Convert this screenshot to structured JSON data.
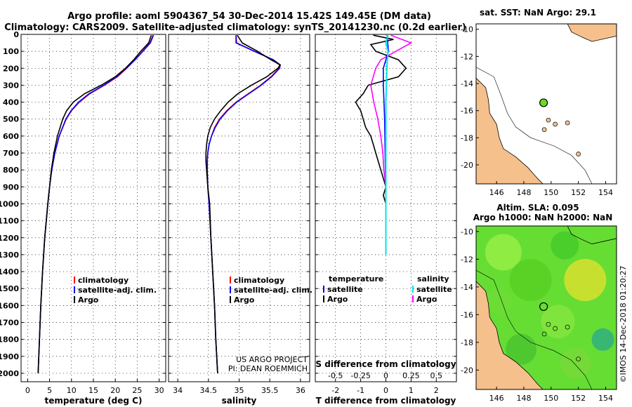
{
  "title_line1": "Argo profile: aoml 5904367_54 30-Dec-2014 15.42S 149.45E (DM data)",
  "title_line2": "Climatology: CARS2009. Satellite-adjusted climatology: synTS_20141230.nc (0.2d earlier)",
  "colors": {
    "climatology": "#ff0000",
    "satellite": "#0000ff",
    "argo": "#000000",
    "sal_satellite": "#00e5e5",
    "sal_argo": "#ff00ff",
    "land": "#f5c08c",
    "sea": "#ffffff"
  },
  "depth_axis": {
    "ylim": [
      0,
      2050
    ],
    "ticks": [
      "0",
      "100",
      "200",
      "300",
      "400",
      "500",
      "600",
      "700",
      "800",
      "900",
      "1000",
      "1100",
      "1200",
      "1300",
      "1400",
      "1500",
      "1600",
      "1700",
      "1800",
      "1900",
      "2000"
    ]
  },
  "chart_data": [
    {
      "type": "line",
      "id": "temperature",
      "xlabel": "temperature (deg C)",
      "xlim": [
        -1.5,
        31.5
      ],
      "xticks": [
        0,
        5,
        10,
        15,
        20,
        25,
        30
      ],
      "xtick_labels": [
        "0",
        "5",
        "10",
        "15",
        "20",
        "25",
        "30"
      ],
      "legend": [
        "climatology",
        "satellite-adj. clim.",
        "Argo"
      ],
      "depth": [
        5,
        50,
        100,
        150,
        200,
        250,
        300,
        350,
        400,
        450,
        500,
        600,
        700,
        800,
        900,
        1000,
        1200,
        1400,
        1600,
        1800,
        2000
      ],
      "series": [
        {
          "name": "climatology",
          "values": [
            28.6,
            27.9,
            26.2,
            24.5,
            22.6,
            20.5,
            17.5,
            14.2,
            11.8,
            10.0,
            8.8,
            7.2,
            6.2,
            5.5,
            5.0,
            4.6,
            3.9,
            3.4,
            3.0,
            2.7,
            2.4
          ]
        },
        {
          "name": "satellite-adj. clim.",
          "values": [
            28.7,
            28.0,
            26.3,
            24.5,
            22.5,
            20.3,
            17.4,
            14.0,
            11.6,
            9.9,
            8.7,
            7.2,
            6.2,
            5.5,
            5.0,
            4.6,
            3.9,
            3.4,
            3.0,
            2.7,
            2.4
          ]
        },
        {
          "name": "Argo",
          "values": [
            28.2,
            27.6,
            25.8,
            24.2,
            22.3,
            20.0,
            16.8,
            13.0,
            10.4,
            8.9,
            8.0,
            6.8,
            6.0,
            5.4,
            5.0,
            4.6,
            3.9,
            3.4,
            3.0,
            2.7,
            2.4
          ]
        }
      ]
    },
    {
      "type": "line",
      "id": "salinity",
      "xlabel": "salinity",
      "xlim": [
        33.85,
        36.15
      ],
      "xticks": [
        34,
        34.5,
        35,
        35.5,
        36
      ],
      "xtick_labels": [
        "34",
        "34.5",
        "35",
        "35.5",
        "36"
      ],
      "legend": [
        "climatology",
        "satellite-adj. clim.",
        "Argo"
      ],
      "annotation_line1": "US ARGO PROJECT",
      "annotation_line2": "PI: DEAN ROEMMICH",
      "depth": [
        5,
        50,
        100,
        150,
        180,
        200,
        250,
        300,
        350,
        400,
        450,
        500,
        550,
        600,
        650,
        700,
        750,
        800,
        900,
        1000,
        1200,
        1400,
        1600,
        1800,
        2000
      ],
      "series": [
        {
          "name": "climatology",
          "values": [
            34.95,
            34.96,
            35.25,
            35.55,
            35.66,
            35.65,
            35.52,
            35.35,
            35.15,
            34.95,
            34.8,
            34.68,
            34.6,
            34.55,
            34.51,
            34.49,
            34.48,
            34.48,
            34.49,
            34.51,
            34.54,
            34.57,
            34.6,
            34.62,
            34.65
          ]
        },
        {
          "name": "satellite-adj. clim.",
          "values": [
            34.95,
            34.95,
            35.25,
            35.56,
            35.67,
            35.66,
            35.53,
            35.36,
            35.16,
            34.96,
            34.81,
            34.69,
            34.61,
            34.55,
            34.51,
            34.49,
            34.48,
            34.48,
            34.49,
            34.51,
            34.54,
            34.57,
            34.6,
            34.62,
            34.65
          ]
        },
        {
          "name": "Argo",
          "values": [
            34.97,
            35.05,
            35.3,
            35.52,
            35.67,
            35.63,
            35.45,
            35.2,
            34.98,
            34.82,
            34.7,
            34.6,
            34.53,
            34.49,
            34.47,
            34.46,
            34.46,
            34.47,
            34.49,
            34.52,
            34.54,
            34.57,
            34.6,
            34.62,
            34.65
          ]
        }
      ]
    },
    {
      "type": "line",
      "id": "difference",
      "xlabel": "T difference from climatology",
      "xlabel_top": "S difference from climatology",
      "xlim": [
        -2.8,
        2.8
      ],
      "xticks": [
        -2,
        -1,
        0,
        1,
        2
      ],
      "xtick_labels": [
        "-2",
        "-1",
        "0",
        "1",
        "2"
      ],
      "s_xticks": [
        -0.5,
        -0.25,
        0,
        0.25,
        0.5
      ],
      "s_xtick_labels": [
        "-0.5",
        "-0.25",
        "0",
        "0.25",
        "0.5"
      ],
      "s_scale": 4,
      "legend_left_title": "temperature",
      "legend_right_title": "salinity",
      "legend_left": [
        "satellite",
        "Argo"
      ],
      "legend_right": [
        "satellite",
        "Argo"
      ],
      "t_satellite": {
        "depth": [
          5,
          100,
          200,
          300,
          500,
          1000,
          1300
        ],
        "values": [
          0.05,
          0.1,
          -0.1,
          -0.1,
          -0.05,
          0.0,
          0.0
        ]
      },
      "t_argo": {
        "depth": [
          5,
          30,
          60,
          100,
          150,
          200,
          250,
          300,
          350,
          400,
          450,
          500,
          550,
          600,
          650,
          700,
          750,
          800,
          850,
          900,
          950,
          1000
        ],
        "values": [
          -0.5,
          0.3,
          -0.6,
          -0.4,
          0.5,
          0.8,
          0.5,
          -0.7,
          -0.9,
          -1.2,
          -1.0,
          -0.9,
          -0.8,
          -0.6,
          -0.5,
          -0.4,
          -0.3,
          -0.2,
          -0.1,
          0.0,
          -0.1,
          0.0
        ]
      },
      "s_satellite": {
        "depth": [
          5,
          50,
          100,
          200,
          400,
          1300
        ],
        "values": [
          0.02,
          0.0,
          0.02,
          0.01,
          0.0,
          0.0
        ]
      },
      "s_argo": {
        "depth": [
          5,
          50,
          100,
          150,
          200,
          300,
          400,
          500,
          600,
          700,
          800,
          900,
          1000
        ],
        "values": [
          0.05,
          0.25,
          0.1,
          -0.05,
          -0.1,
          -0.15,
          -0.12,
          -0.08,
          -0.05,
          -0.03,
          -0.02,
          0.0,
          0.0
        ]
      }
    },
    {
      "type": "map",
      "id": "sst_map",
      "title": "sat. SST: NaN Argo: 29.1",
      "lon_range": [
        144.5,
        154.8
      ],
      "lat_range": [
        -21.4,
        -9.6
      ],
      "xticks": [
        "146",
        "148",
        "150",
        "152",
        "154"
      ],
      "yticks": [
        "-10",
        "-12",
        "-14",
        "-16",
        "-18",
        "-20"
      ],
      "float_position": {
        "lon": 149.45,
        "lat": -15.42
      }
    },
    {
      "type": "map",
      "id": "sla_map",
      "title_line1": "Altim. SLA: 0.095",
      "title_line2": "Argo h1000: NaN h2000: NaN",
      "lon_range": [
        144.5,
        154.8
      ],
      "lat_range": [
        -21.4,
        -9.6
      ],
      "xticks": [
        "146",
        "148",
        "150",
        "152",
        "154"
      ],
      "yticks": [
        "-10",
        "-12",
        "-14",
        "-16",
        "-18",
        "-20"
      ],
      "float_position": {
        "lon": 149.45,
        "lat": -15.42
      }
    }
  ],
  "credit": "©IMOS 14-Dec-2018 01:20:27"
}
